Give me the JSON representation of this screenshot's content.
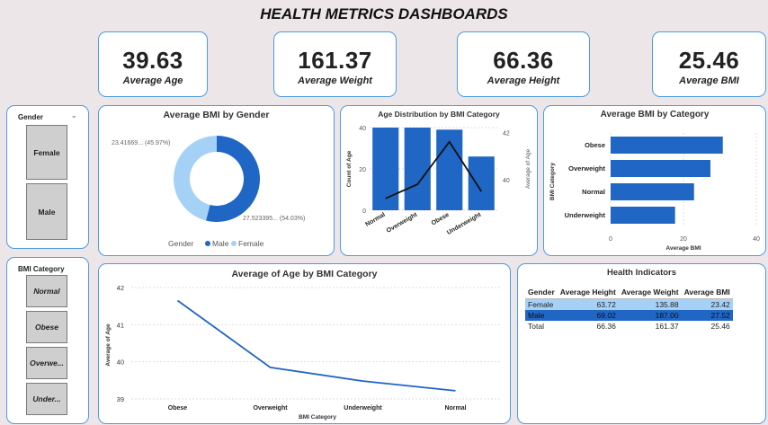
{
  "title": "HEALTH METRICS DASHBOARDS",
  "kpis": [
    {
      "value": "39.63",
      "label": "Average Age"
    },
    {
      "value": "161.37",
      "label": "Average Weight"
    },
    {
      "value": "66.36",
      "label": "Average Height"
    },
    {
      "value": "25.46",
      "label": "Average BMI"
    }
  ],
  "gender_slicer": {
    "header": "Gender",
    "items": [
      "Female",
      "Male"
    ]
  },
  "bmi_slicer": {
    "header": "BMI Category",
    "items": [
      "Normal",
      "Obese",
      "Overwe...",
      "Under..."
    ]
  },
  "colors": {
    "accent": "#4d9be6",
    "male": "#1f66c5",
    "female": "#a6d1f7",
    "line": "#1f66c5"
  },
  "chart_data": [
    {
      "type": "pie",
      "title": "Average BMI by Gender",
      "categories": [
        "Male",
        "Female"
      ],
      "values": [
        27.52,
        23.42
      ],
      "data_labels": [
        "27.523395... (54.03%)",
        "23.41669... (45.97%)"
      ],
      "legend_title": "Gender",
      "legend": "bottom"
    },
    {
      "type": "bar",
      "title": "Age Distribution by BMI Category",
      "categories": [
        "Normal",
        "Overweight",
        "Obese",
        "Underweight"
      ],
      "series": [
        {
          "values": [
            40,
            40,
            39,
            26
          ]
        },
        {
          "type": "line",
          "values": [
            39.2,
            39.8,
            41.6,
            39.5
          ]
        }
      ],
      "ylabel": "Count of Age",
      "y2label": "Average of Age",
      "yticks": [
        "0",
        "20",
        "40"
      ],
      "y2ticks": [
        "40",
        "42"
      ],
      "ylim": [
        0,
        40
      ],
      "y2lim": [
        38.7,
        42.2
      ]
    },
    {
      "type": "bar",
      "orientation": "horizontal",
      "title": "Average BMI by Category",
      "categories": [
        "Obese",
        "Overweight",
        "Normal",
        "Underweight"
      ],
      "values": [
        30.8,
        27.4,
        22.9,
        17.7
      ],
      "xlabel": "Average BMI",
      "ylabel": "BMI Category",
      "xticks": [
        "0",
        "20",
        "40"
      ],
      "xlim": [
        0,
        40
      ]
    },
    {
      "type": "line",
      "title": "Average of Age by BMI Category",
      "categories": [
        "Obese",
        "Overweight",
        "Underweight",
        "Normal"
      ],
      "values": [
        41.65,
        39.85,
        39.48,
        39.22
      ],
      "xlabel": "BMI Category",
      "ylabel": "Average of Age",
      "yticks": [
        "39",
        "40",
        "41",
        "42"
      ],
      "ylim": [
        39,
        42
      ]
    }
  ],
  "table": {
    "title": "Health Indicators",
    "headers": [
      "Gender",
      "Average Height",
      "Average Weight",
      "Average BMI"
    ],
    "rows": [
      [
        "Female",
        "63.72",
        "135.88",
        "23.42"
      ],
      [
        "Male",
        "69.02",
        "187.00",
        "27.52"
      ],
      [
        "Total",
        "66.36",
        "161.37",
        "25.46"
      ]
    ]
  }
}
